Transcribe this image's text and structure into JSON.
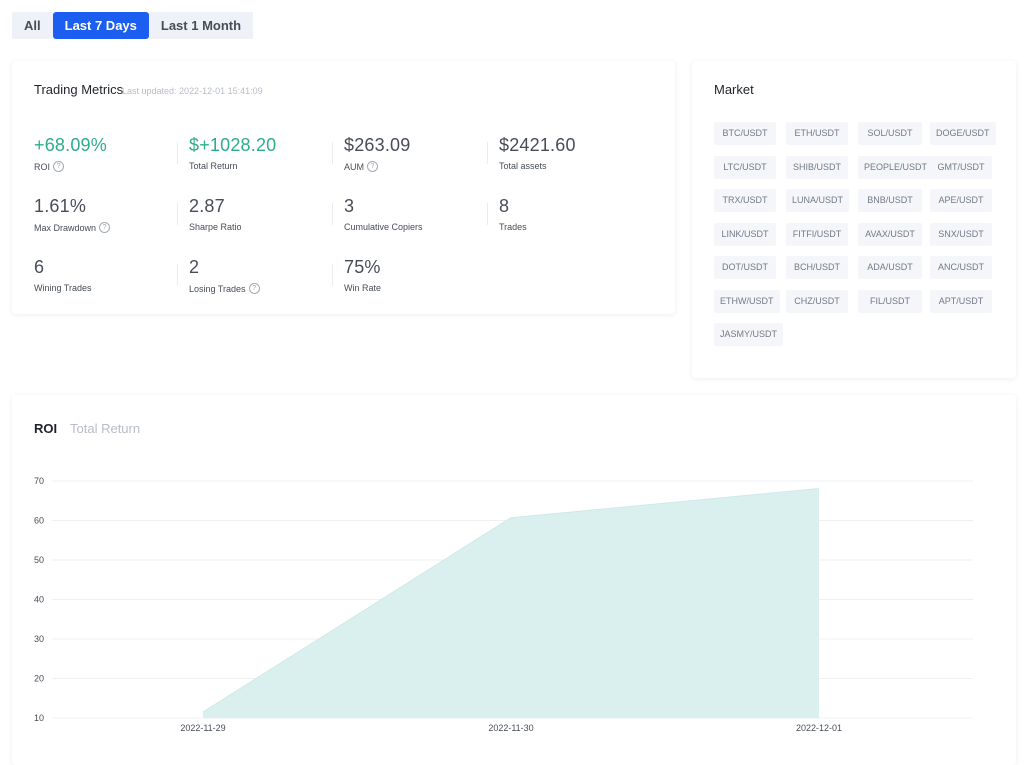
{
  "filters": [
    {
      "label": "All",
      "active": false
    },
    {
      "label": "Last 7 Days",
      "active": true
    },
    {
      "label": "Last 1 Month",
      "active": false
    }
  ],
  "metrics": {
    "title": "Trading Metrics",
    "updated": "Last updated: 2022-12-01 15:41:09",
    "items": [
      {
        "value": "+68.09%",
        "label": "ROI",
        "help": true,
        "green": true
      },
      {
        "value": "$+1028.20",
        "label": "Total Return",
        "help": false,
        "green": true
      },
      {
        "value": "$263.09",
        "label": "AUM",
        "help": true,
        "green": false
      },
      {
        "value": "$2421.60",
        "label": "Total assets",
        "help": false,
        "green": false
      },
      {
        "value": "1.61%",
        "label": "Max Drawdown",
        "help": true,
        "green": false
      },
      {
        "value": "2.87",
        "label": "Sharpe Ratio",
        "help": false,
        "green": false
      },
      {
        "value": "3",
        "label": "Cumulative Copiers",
        "help": false,
        "green": false
      },
      {
        "value": "8",
        "label": "Trades",
        "help": false,
        "green": false
      },
      {
        "value": "6",
        "label": "Wining Trades",
        "help": false,
        "green": false
      },
      {
        "value": "2",
        "label": "Losing Trades",
        "help": true,
        "green": false
      },
      {
        "value": "75%",
        "label": "Win Rate",
        "help": false,
        "green": false
      }
    ]
  },
  "market": {
    "title": "Market",
    "pairs": [
      "BTC/USDT",
      "ETH/USDT",
      "SOL/USDT",
      "DOGE/USDT",
      "LTC/USDT",
      "SHIB/USDT",
      "PEOPLE/USDT",
      "GMT/USDT",
      "TRX/USDT",
      "LUNA/USDT",
      "BNB/USDT",
      "APE/USDT",
      "LINK/USDT",
      "FITFI/USDT",
      "AVAX/USDT",
      "SNX/USDT",
      "DOT/USDT",
      "BCH/USDT",
      "ADA/USDT",
      "ANC/USDT",
      "ETHW/USDT",
      "CHZ/USDT",
      "FIL/USDT",
      "APT/USDT",
      "JASMY/USDT"
    ]
  },
  "chart_tabs": {
    "active": "ROI",
    "inactive": "Total Return"
  },
  "help_glyph": "?",
  "colors": {
    "accent": "#1b5ef0",
    "positive": "#2eac8e",
    "area_fill": "#daf0ef"
  },
  "chart_data": {
    "type": "area",
    "x": [
      "2022-11-29",
      "2022-11-30",
      "2022-12-01"
    ],
    "values": [
      11.5,
      60.7,
      68.1
    ],
    "yticks": [
      10,
      20,
      30,
      40,
      50,
      60,
      70
    ],
    "ylim": [
      10,
      70
    ],
    "xlabel": "",
    "ylabel": "",
    "grid": true
  }
}
